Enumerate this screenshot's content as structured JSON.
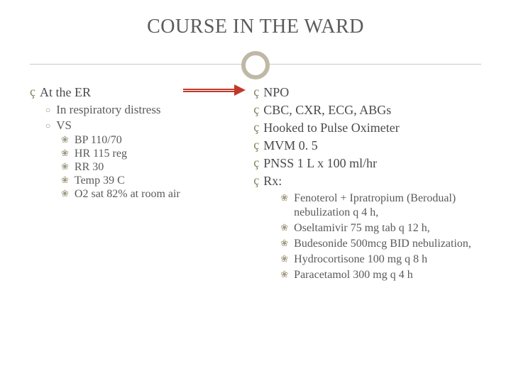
{
  "title": "COURSE IN THE WARD",
  "colors": {
    "title": "#5b5b5b",
    "text": "#4a4a4a",
    "bullet_primary": "#888060",
    "bullet_secondary": "#9a9275",
    "bullet_tertiary": "#a09a80",
    "divider_line": "#c9c9c9",
    "divider_circle": "#bfb8a5",
    "arrow": "#c0392b",
    "background": "#ffffff"
  },
  "typography": {
    "title_size": 28,
    "level1_size": 18,
    "level2_size": 17,
    "level3_size": 16,
    "font_family": "Georgia, serif"
  },
  "left": {
    "h1": "At the ER",
    "sub1": "In respiratory distress",
    "sub2": "VS",
    "vs": {
      "i1": "BP 110/70",
      "i2": "HR 115 reg",
      "i3": "RR 30",
      "i4": "Temp 39 C",
      "i5": "O2 sat 82% at room air"
    }
  },
  "right": {
    "i1": "NPO",
    "i2": "CBC, CXR, ECG, ABGs",
    "i3": "Hooked to Pulse Oximeter",
    "i4": "MVM 0. 5",
    "i5": "PNSS 1 L x 100 ml/hr",
    "i6": "Rx:",
    "rx": {
      "r1": "Fenoterol + Ipratropium (Berodual) nebulization q 4 h,",
      "r2": "Oseltamivir 75 mg tab q 12 h,",
      "r3": "Budesonide 500mcg BID nebulization,",
      "r4": "Hydrocortisone 100 mg q 8 h",
      "r5": "Paracetamol 300 mg q 4 h"
    }
  }
}
